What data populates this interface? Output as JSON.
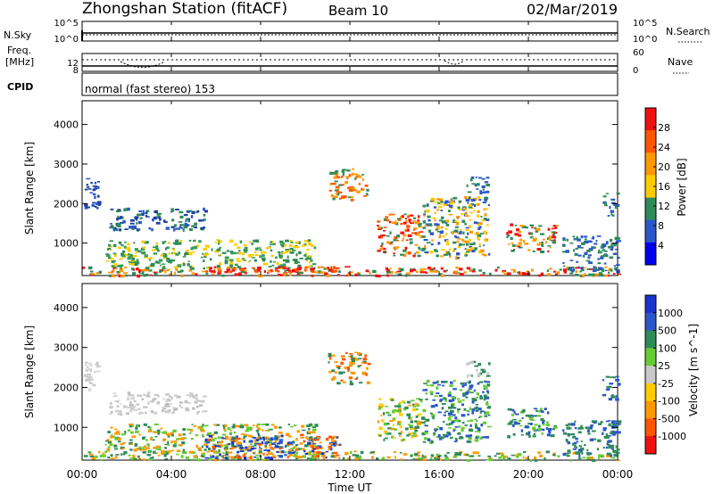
{
  "header": {
    "station": "Zhongshan Station (fitACF)",
    "beam": "Beam 10",
    "date": "02/Mar/2019"
  },
  "nsky_panel": {
    "left_label": "N.Sky",
    "right_label": "N.Search",
    "left_ticks": [
      "10^5",
      "10^0"
    ],
    "right_ticks": [
      "10^5",
      "10^0"
    ]
  },
  "freq_panel": {
    "left_label_1": "Freq.",
    "left_label_2": "[MHz]",
    "left_ticks": [
      "12",
      "8"
    ],
    "right_label": "Nave",
    "right_ticks": [
      "60",
      "0"
    ]
  },
  "cpid_panel": {
    "label": "CPID",
    "text": "normal (fast stereo) 153"
  },
  "chart_data": [
    {
      "type": "heatmap",
      "name": "power",
      "ylabel": "Slant Range [km]",
      "yticks": [
        "1000",
        "2000",
        "3000",
        "4000"
      ],
      "ylim": [
        180,
        4600
      ],
      "xlim": [
        0,
        24
      ],
      "colorbar_label": "Power [dB]",
      "colorbar_ticks": [
        "28",
        "24",
        "20",
        "16",
        "12",
        "8",
        "4"
      ],
      "colorbar_colors": [
        "#ee1111",
        "#ff5500",
        "#ff9900",
        "#ffcc00",
        "#2e8b57",
        "#2b57c9",
        "#0000ee"
      ],
      "regions": [
        {
          "t0": 0.0,
          "t1": 24.0,
          "r0": 200,
          "r1": 420,
          "colors": [
            "#2e8b57",
            "#ff9900",
            "#ee1111"
          ]
        },
        {
          "t0": 1.0,
          "t1": 10.5,
          "r0": 400,
          "r1": 1100,
          "colors": [
            "#2e8b57",
            "#ffcc00",
            "#3a9d5a"
          ]
        },
        {
          "t0": 1.2,
          "t1": 5.5,
          "r0": 1350,
          "r1": 1900,
          "colors": [
            "#2b57c9",
            "#1e3f9e",
            "#2e8b57"
          ]
        },
        {
          "t0": 0.0,
          "t1": 0.7,
          "r0": 1900,
          "r1": 2650,
          "colors": [
            "#2b57c9",
            "#1e3f9e"
          ]
        },
        {
          "t0": 5.5,
          "t1": 11.5,
          "r0": 250,
          "r1": 420,
          "colors": [
            "#ee1111",
            "#ff5500"
          ]
        },
        {
          "t0": 11.0,
          "t1": 12.8,
          "r0": 2100,
          "r1": 2900,
          "colors": [
            "#ff9900",
            "#2e8b57",
            "#ff5500"
          ]
        },
        {
          "t0": 13.2,
          "t1": 15.2,
          "r0": 700,
          "r1": 1750,
          "colors": [
            "#ee1111",
            "#ff5500",
            "#ff9900",
            "#2e8b57"
          ]
        },
        {
          "t0": 15.2,
          "t1": 18.2,
          "r0": 650,
          "r1": 2200,
          "colors": [
            "#2e8b57",
            "#ff9900",
            "#ffcc00",
            "#2b57c9"
          ]
        },
        {
          "t0": 17.2,
          "t1": 18.2,
          "r0": 2300,
          "r1": 2700,
          "colors": [
            "#2b57c9",
            "#2e8b57"
          ]
        },
        {
          "t0": 19.0,
          "t1": 21.2,
          "r0": 800,
          "r1": 1500,
          "colors": [
            "#ff9900",
            "#2e8b57",
            "#ee1111"
          ]
        },
        {
          "t0": 21.5,
          "t1": 24.0,
          "r0": 300,
          "r1": 1200,
          "colors": [
            "#2e8b57",
            "#2b57c9"
          ]
        },
        {
          "t0": 23.3,
          "t1": 24.0,
          "r0": 1700,
          "r1": 2300,
          "colors": [
            "#2b57c9",
            "#2e8b57"
          ]
        }
      ]
    },
    {
      "type": "heatmap",
      "name": "velocity",
      "ylabel": "Slant Range [km]",
      "yticks": [
        "1000",
        "2000",
        "3000",
        "4000"
      ],
      "ylim": [
        180,
        4600
      ],
      "xlim": [
        0,
        24
      ],
      "colorbar_label": "Velocity [m s^-1]",
      "colorbar_ticks": [
        "1000",
        "500",
        "100",
        "25",
        "-25",
        "-100",
        "-500",
        "-1000"
      ],
      "colorbar_colors": [
        "#1a33cc",
        "#2b57c9",
        "#2e8b57",
        "#66cc33",
        "#c8c8c8",
        "#ffcc00",
        "#ff9900",
        "#ff5500",
        "#ee1111"
      ],
      "regions": [
        {
          "t0": 0.0,
          "t1": 24.0,
          "r0": 200,
          "r1": 420,
          "colors": [
            "#2e8b57",
            "#66cc33",
            "#ff9900"
          ]
        },
        {
          "t0": 1.0,
          "t1": 10.5,
          "r0": 400,
          "r1": 1100,
          "colors": [
            "#2e8b57",
            "#66cc33",
            "#ff9900"
          ]
        },
        {
          "t0": 1.2,
          "t1": 5.5,
          "r0": 1350,
          "r1": 1900,
          "colors": [
            "#c8c8c8",
            "#bdbdbd",
            "#d4d4d4"
          ]
        },
        {
          "t0": 0.0,
          "t1": 0.7,
          "r0": 1900,
          "r1": 2650,
          "colors": [
            "#c8c8c8",
            "#d4d4d4"
          ]
        },
        {
          "t0": 5.5,
          "t1": 11.5,
          "r0": 250,
          "r1": 850,
          "colors": [
            "#1a33cc",
            "#2b57c9",
            "#ff9900",
            "#ff5500"
          ]
        },
        {
          "t0": 11.0,
          "t1": 12.8,
          "r0": 2100,
          "r1": 2900,
          "colors": [
            "#ff9900",
            "#ff5500",
            "#2e8b57"
          ]
        },
        {
          "t0": 13.2,
          "t1": 15.2,
          "r0": 700,
          "r1": 1750,
          "colors": [
            "#2e8b57",
            "#66cc33",
            "#ff9900",
            "#ffcc00"
          ]
        },
        {
          "t0": 15.2,
          "t1": 18.2,
          "r0": 650,
          "r1": 2200,
          "colors": [
            "#2e8b57",
            "#2b57c9",
            "#66cc33"
          ]
        },
        {
          "t0": 17.2,
          "t1": 18.2,
          "r0": 2300,
          "r1": 2700,
          "colors": [
            "#c8c8c8",
            "#2e8b57"
          ]
        },
        {
          "t0": 19.0,
          "t1": 21.2,
          "r0": 800,
          "r1": 1500,
          "colors": [
            "#2e8b57",
            "#66cc33",
            "#2b57c9"
          ]
        },
        {
          "t0": 21.5,
          "t1": 24.0,
          "r0": 300,
          "r1": 1200,
          "colors": [
            "#2e8b57",
            "#2b57c9"
          ]
        },
        {
          "t0": 23.3,
          "t1": 24.0,
          "r0": 1700,
          "r1": 2300,
          "colors": [
            "#2b57c9",
            "#2e8b57"
          ]
        }
      ]
    }
  ],
  "x_axis": {
    "label": "Time UT",
    "ticks": [
      "00:00",
      "04:00",
      "08:00",
      "12:00",
      "16:00",
      "20:00",
      "00:00"
    ]
  }
}
